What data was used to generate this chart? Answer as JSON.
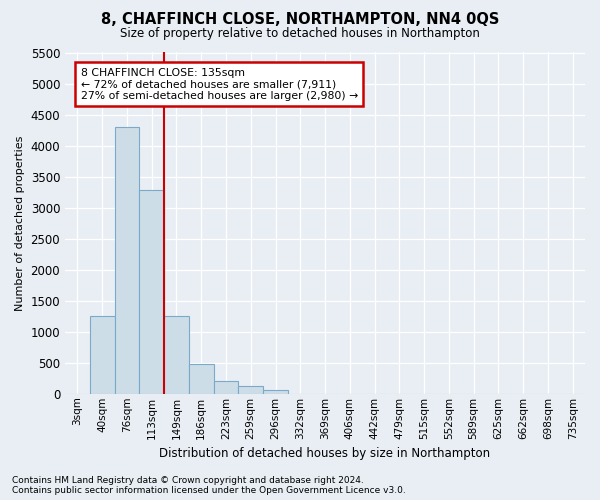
{
  "title": "8, CHAFFINCH CLOSE, NORTHAMPTON, NN4 0QS",
  "subtitle": "Size of property relative to detached houses in Northampton",
  "xlabel": "Distribution of detached houses by size in Northampton",
  "ylabel": "Number of detached properties",
  "bar_labels": [
    "3sqm",
    "40sqm",
    "76sqm",
    "113sqm",
    "149sqm",
    "186sqm",
    "223sqm",
    "259sqm",
    "296sqm",
    "332sqm",
    "369sqm",
    "406sqm",
    "442sqm",
    "479sqm",
    "515sqm",
    "552sqm",
    "589sqm",
    "625sqm",
    "662sqm",
    "698sqm",
    "735sqm"
  ],
  "bar_values": [
    0,
    1250,
    4300,
    3280,
    1250,
    480,
    210,
    120,
    65,
    0,
    0,
    0,
    0,
    0,
    0,
    0,
    0,
    0,
    0,
    0,
    0
  ],
  "bar_color": "#ccdde8",
  "bar_edgecolor": "#7aaac8",
  "bar_linewidth": 0.8,
  "vline_x_index": 3.5,
  "vline_color": "#cc0000",
  "vline_linewidth": 1.5,
  "ylim": [
    0,
    5500
  ],
  "yticks": [
    0,
    500,
    1000,
    1500,
    2000,
    2500,
    3000,
    3500,
    4000,
    4500,
    5000,
    5500
  ],
  "annotation_text": "8 CHAFFINCH CLOSE: 135sqm\n← 72% of detached houses are smaller (7,911)\n27% of semi-detached houses are larger (2,980) →",
  "annotation_box_facecolor": "#ffffff",
  "annotation_box_edgecolor": "#cc0000",
  "footnote": "Contains HM Land Registry data © Crown copyright and database right 2024.\nContains public sector information licensed under the Open Government Licence v3.0.",
  "bg_color": "#e8eef4",
  "grid_color": "#ffffff"
}
